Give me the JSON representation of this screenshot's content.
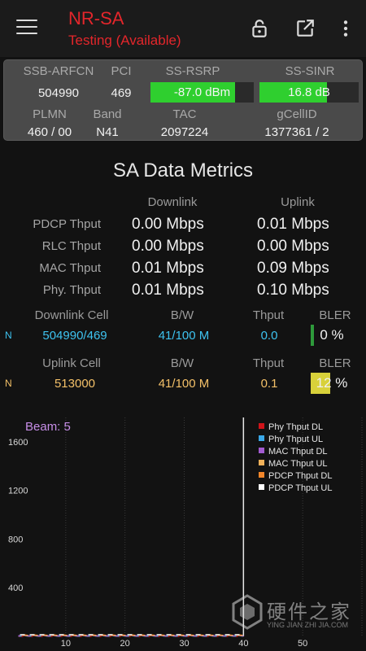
{
  "appbar": {
    "title": "NR-SA",
    "subtitle": "Testing (Available)",
    "icons": [
      "menu-icon",
      "lock-icon",
      "open-external-icon",
      "more-vert-icon"
    ]
  },
  "info": {
    "labels": {
      "ssb_arfcn": "SSB-ARFCN",
      "pci": "PCI",
      "ss_rsrp": "SS-RSRP",
      "ss_sinr": "SS-SINR",
      "plmn": "PLMN",
      "band": "Band",
      "tac": "TAC",
      "gcellid": "gCellID"
    },
    "values": {
      "ssb_arfcn": "504990",
      "pci": "469",
      "ss_rsrp": "-87.0 dBm",
      "ss_sinr": "16.8 dB",
      "plmn": "460 / 00",
      "band": "N41",
      "tac": "2097224",
      "gcellid": "1377361 / 2"
    },
    "rsrp_level": 0.82,
    "sinr_level": 0.68,
    "meter_color": "#2fcf2f"
  },
  "metrics": {
    "title": "SA Data Metrics",
    "downlink_header": "Downlink",
    "uplink_header": "Uplink",
    "rows": [
      {
        "label": "PDCP Thput",
        "dl": "0.00 Mbps",
        "ul": "0.01 Mbps"
      },
      {
        "label": "RLC Thput",
        "dl": "0.00 Mbps",
        "ul": "0.00 Mbps"
      },
      {
        "label": "MAC Thput",
        "dl": "0.01 Mbps",
        "ul": "0.09 Mbps"
      },
      {
        "label": "Phy. Thput",
        "dl": "0.01 Mbps",
        "ul": "0.10 Mbps"
      }
    ]
  },
  "cells": {
    "downlink": {
      "header": "Downlink Cell",
      "bw_header": "B/W",
      "thput_header": "Thput",
      "bler_header": "BLER",
      "marker": "N",
      "cell": "504990/469",
      "bw": "41/100 M",
      "thput": "0.0",
      "bler": "0 %",
      "bler_level": 0.0,
      "bar_color": "#2e9a3b"
    },
    "uplink": {
      "header": "Uplink Cell",
      "bw_header": "B/W",
      "thput_header": "Thput",
      "bler_header": "BLER",
      "marker": "N",
      "cell": "513000",
      "bw": "41/100 M",
      "thput": "0.1",
      "bler": "12 %",
      "bler_level": 0.12,
      "bar_color": "#d8d13a"
    }
  },
  "chart_data": {
    "type": "line",
    "annotation": "Beam: 5",
    "y_ticks": [
      400,
      800,
      1200,
      1600
    ],
    "x_ticks": [
      10,
      20,
      30,
      40,
      50
    ],
    "xlim": [
      0,
      60
    ],
    "ylim": [
      0,
      1800
    ],
    "cursor_x": 40,
    "grid": "vertical dotted",
    "legend_position": "top-right",
    "series": [
      {
        "name": "Phy Thput DL",
        "color": "#d0141a",
        "values": [
          0,
          0,
          0,
          0,
          0
        ]
      },
      {
        "name": "Phy Thput UL",
        "color": "#3aa8e8",
        "values": [
          0,
          0,
          0,
          0,
          0
        ]
      },
      {
        "name": "MAC Thput DL",
        "color": "#a25bd0",
        "values": [
          0,
          0,
          0,
          0,
          0
        ]
      },
      {
        "name": "MAC Thput UL",
        "color": "#f0b15a",
        "values": [
          0,
          0,
          0,
          0,
          0
        ]
      },
      {
        "name": "PDCP Thput DL",
        "color": "#f2862a",
        "values": [
          0,
          0,
          0,
          0,
          0
        ]
      },
      {
        "name": "PDCP Thput UL",
        "color": "#ffffff",
        "values": [
          0,
          0,
          0,
          0,
          0
        ]
      }
    ]
  },
  "watermark": {
    "text": "硬件之家",
    "sub": "YING JIAN ZHI JIA.COM"
  }
}
